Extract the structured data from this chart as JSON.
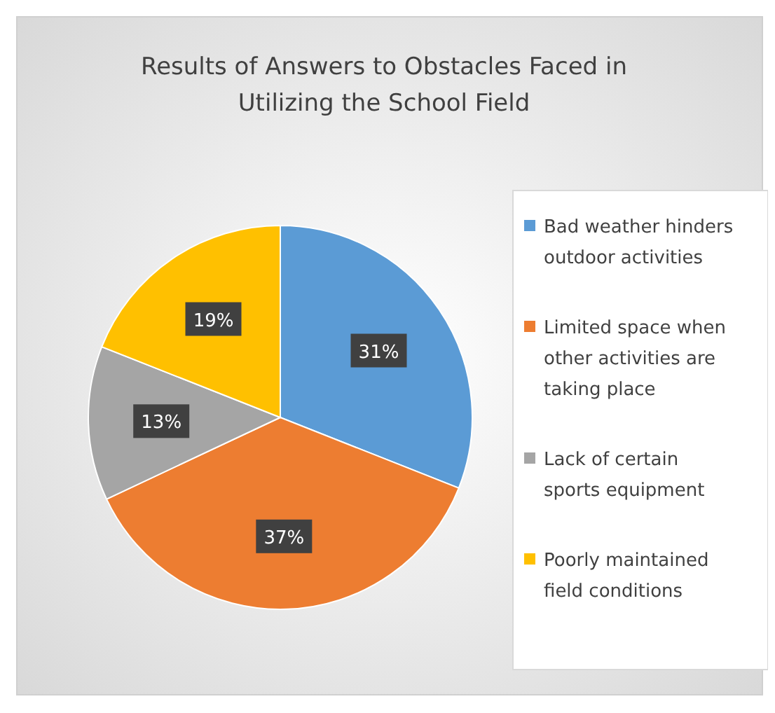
{
  "chart_data": {
    "type": "pie",
    "title": "Results of Answers to Obstacles Faced in Utilizing the School Field",
    "categories": [
      "Bad weather hinders outdoor activities",
      "Limited space when other activities are taking place",
      "Lack of certain sports equipment",
      "Poorly maintained field conditions"
    ],
    "values": [
      31,
      37,
      13,
      19
    ],
    "colors": [
      "#5b9bd5",
      "#ed7d31",
      "#a5a5a5",
      "#ffc000"
    ],
    "value_labels": [
      "31%",
      "37%",
      "13%",
      "19%"
    ],
    "legend": "right"
  }
}
